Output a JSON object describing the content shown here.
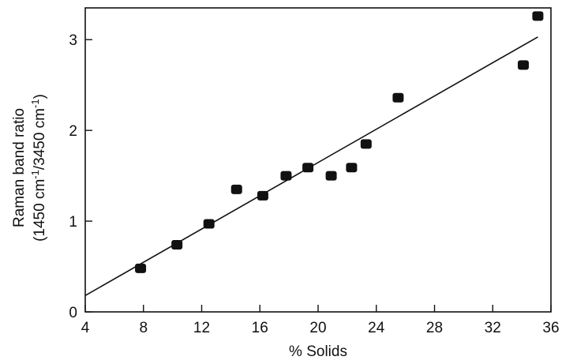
{
  "chart_data": {
    "type": "scatter",
    "xlabel": "% Solids",
    "ylabel_line1": "Raman band ratio",
    "ylabel_line2": {
      "a": "(1450 cm",
      "sup1": "-1",
      "b": "/3450 cm",
      "sup2": "-1",
      "c": ")"
    },
    "xlim": [
      4,
      36
    ],
    "ylim": [
      0,
      3.35
    ],
    "x_ticks": [
      4,
      8,
      12,
      16,
      20,
      24,
      28,
      32,
      36
    ],
    "y_ticks": [
      0,
      1,
      2,
      3
    ],
    "grid": false,
    "series": [
      {
        "points": [
          {
            "x": 7.8,
            "y": 0.48
          },
          {
            "x": 10.3,
            "y": 0.74
          },
          {
            "x": 12.5,
            "y": 0.97
          },
          {
            "x": 14.4,
            "y": 1.35
          },
          {
            "x": 16.2,
            "y": 1.28
          },
          {
            "x": 17.8,
            "y": 1.5
          },
          {
            "x": 19.3,
            "y": 1.59
          },
          {
            "x": 20.9,
            "y": 1.5
          },
          {
            "x": 22.3,
            "y": 1.59
          },
          {
            "x": 23.3,
            "y": 1.85
          },
          {
            "x": 25.5,
            "y": 2.36
          },
          {
            "x": 34.1,
            "y": 2.72
          },
          {
            "x": 35.1,
            "y": 3.26
          }
        ]
      }
    ],
    "fit_line": {
      "x": [
        4,
        35.1
      ],
      "y": [
        0.18,
        3.03
      ]
    }
  }
}
